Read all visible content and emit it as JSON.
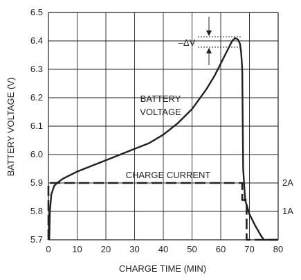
{
  "chart_data": {
    "type": "line",
    "xlabel": "CHARGE TIME (MIN)",
    "ylabel": "BATTERY VOLTAGE (V)",
    "xlim": [
      0,
      80
    ],
    "ylim": [
      5.7,
      6.5
    ],
    "x_ticks": [
      "0",
      "10",
      "20",
      "30",
      "40",
      "50",
      "60",
      "70",
      "80"
    ],
    "y_ticks": [
      "5.7",
      "5.8",
      "5.9",
      "6.0",
      "6.1",
      "6.2",
      "6.3",
      "6.4",
      "6.5"
    ],
    "grid": true,
    "right_axis_ticks": [
      {
        "label": "2A",
        "current": 2
      },
      {
        "label": "1A",
        "current": 1
      }
    ],
    "series": [
      {
        "name": "BATTERY VOLTAGE",
        "style": "solid",
        "axis": "voltage",
        "x": [
          0.3,
          0.5,
          1,
          2,
          3,
          5,
          10,
          15,
          20,
          25,
          30,
          35,
          40,
          45,
          50,
          55,
          58,
          61,
          63,
          64,
          65,
          66,
          66.7,
          67.1,
          67.5,
          67.8,
          68.5,
          70,
          72,
          74,
          75,
          76,
          80
        ],
        "y": [
          5.7,
          5.8,
          5.86,
          5.89,
          5.9,
          5.915,
          5.94,
          5.96,
          5.98,
          6.0,
          6.02,
          6.04,
          6.07,
          6.11,
          6.16,
          6.23,
          6.28,
          6.34,
          6.38,
          6.4,
          6.41,
          6.405,
          6.39,
          6.36,
          6.3,
          5.95,
          5.84,
          5.79,
          5.75,
          5.715,
          5.7,
          5.7,
          5.7
        ]
      },
      {
        "name": "CHARGE CURRENT",
        "style": "dashed",
        "axis": "current",
        "x": [
          0,
          0,
          67.5,
          67.5,
          69,
          69,
          80
        ],
        "y": [
          0,
          2,
          2,
          1.4,
          1.4,
          0,
          0
        ]
      }
    ],
    "annotations": {
      "voltage_label_line1": "BATTERY",
      "voltage_label_line2": "VOLTAGE",
      "current_label": "CHARGE CURRENT",
      "delta_v": "–ΔV"
    }
  }
}
